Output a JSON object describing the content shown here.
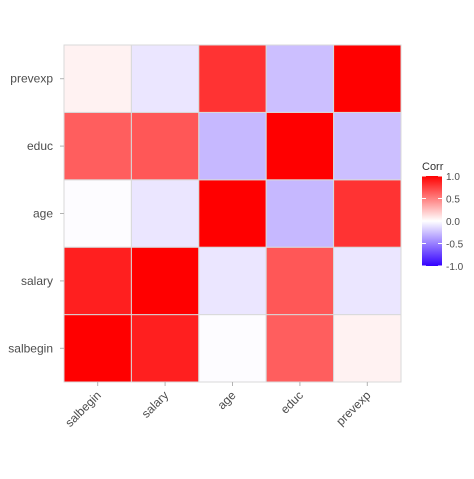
{
  "chart_data": {
    "type": "heatmap",
    "x_categories": [
      "salbegin",
      "salary",
      "age",
      "educ",
      "prevexp"
    ],
    "y_categories": [
      "salbegin",
      "salary",
      "age",
      "educ",
      "prevexp"
    ],
    "matrix": [
      [
        1.0,
        0.88,
        -0.01,
        0.63,
        0.05
      ],
      [
        0.88,
        1.0,
        -0.1,
        0.66,
        -0.1
      ],
      [
        -0.01,
        -0.1,
        1.0,
        -0.28,
        0.8
      ],
      [
        0.63,
        0.66,
        -0.28,
        1.0,
        -0.25
      ],
      [
        0.05,
        -0.1,
        0.8,
        -0.25,
        1.0
      ]
    ],
    "legend": {
      "title": "Corr",
      "placement": "right",
      "range": [
        -1.0,
        1.0
      ],
      "ticks": [
        "1.0",
        "0.5",
        "0.0",
        "-0.5",
        "-1.0"
      ],
      "colors": {
        "low": "#3300ff",
        "mid": "#ffffff",
        "high": "#ff0000"
      }
    },
    "grid": true
  }
}
